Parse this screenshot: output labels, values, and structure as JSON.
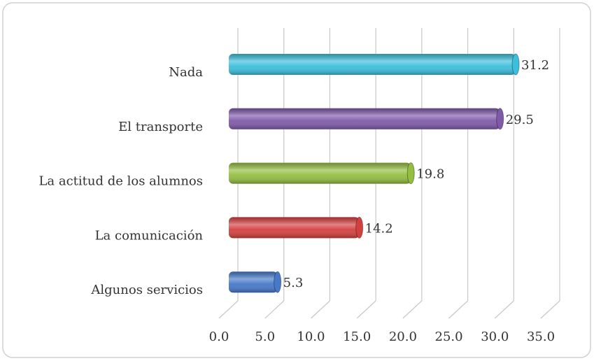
{
  "chart_data": {
    "type": "bar",
    "orientation": "horizontal",
    "categories": [
      "Nada",
      "El transporte",
      "La actitud de los alumnos",
      "La comunicación",
      "Algunos servicios"
    ],
    "values": [
      31.2,
      29.5,
      19.8,
      14.2,
      5.3
    ],
    "colors": [
      "#3cbfdd",
      "#7f5aa9",
      "#94be40",
      "#d4403f",
      "#4579c9"
    ],
    "xlim": [
      0,
      35
    ],
    "xticks": [
      {
        "value": 0,
        "label": "0.0"
      },
      {
        "value": 5,
        "label": "5.0"
      },
      {
        "value": 10,
        "label": "10.0"
      },
      {
        "value": 15,
        "label": "15.0"
      },
      {
        "value": 20,
        "label": "20.0"
      },
      {
        "value": 25,
        "label": "25.0"
      },
      {
        "value": 30,
        "label": "30.0"
      },
      {
        "value": 35,
        "label": "35.0"
      }
    ],
    "grid": true
  }
}
